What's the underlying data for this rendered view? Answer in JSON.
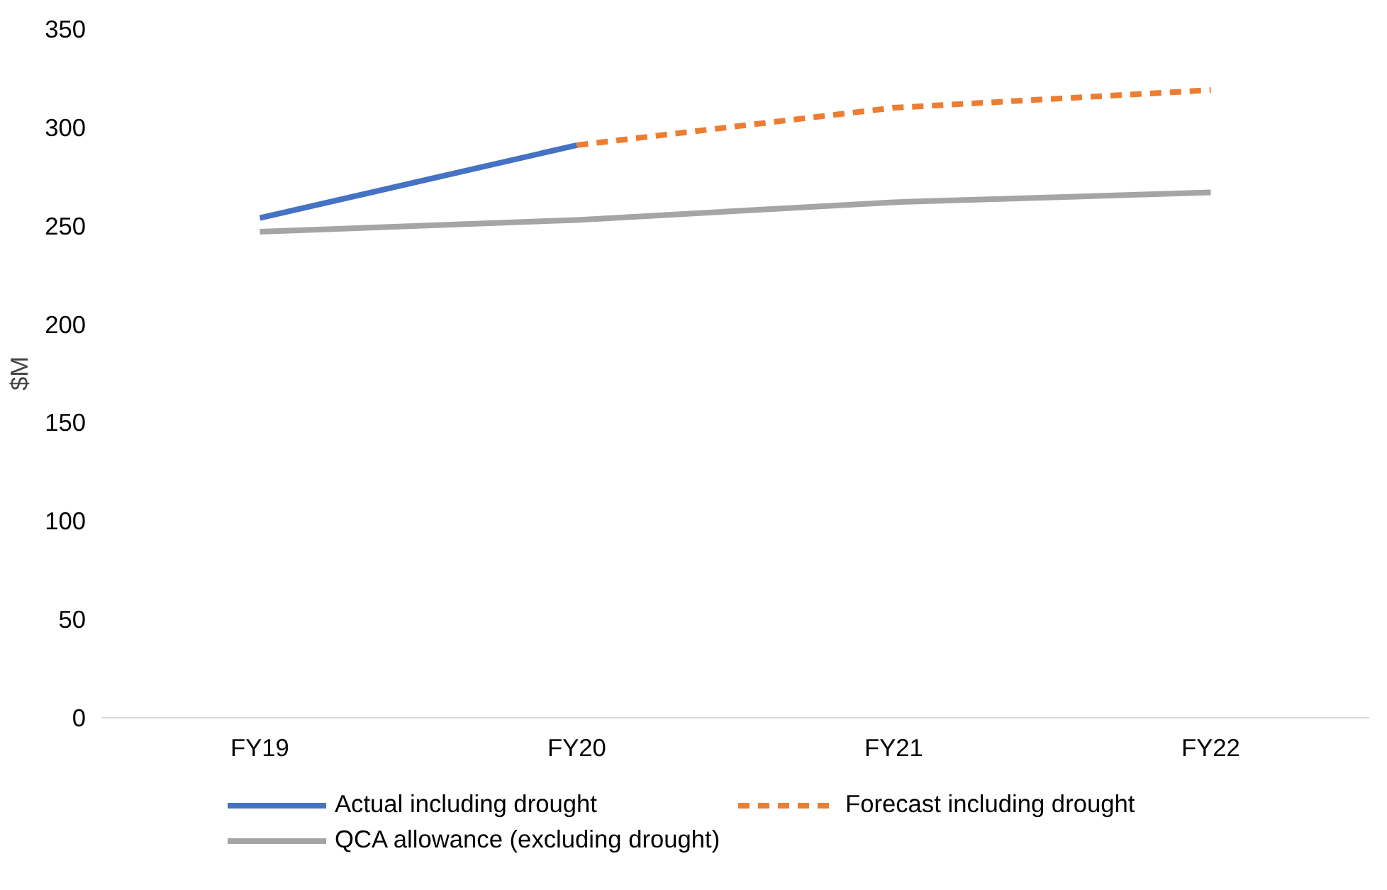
{
  "chart_data": {
    "type": "line",
    "ylabel": "$M",
    "categories": [
      "FY19",
      "FY20",
      "FY21",
      "FY22"
    ],
    "series": [
      {
        "name": "Actual including drought",
        "color": "#4472c4",
        "values": [
          254,
          291,
          null,
          null
        ],
        "line_style": "solid"
      },
      {
        "name": "Forecast including drought",
        "color": "#ed7d31",
        "values": [
          null,
          291,
          310,
          319
        ],
        "line_style": "dashed"
      },
      {
        "name": "QCA allowance (excluding drought)",
        "color": "#a5a5a5",
        "values": [
          247,
          253,
          262,
          267
        ],
        "line_style": "solid"
      }
    ],
    "ylim": [
      0,
      350
    ],
    "yticks": [
      0,
      50,
      100,
      150,
      200,
      250,
      300,
      350
    ],
    "grid": false,
    "legend": "bottom",
    "marker": "none"
  }
}
